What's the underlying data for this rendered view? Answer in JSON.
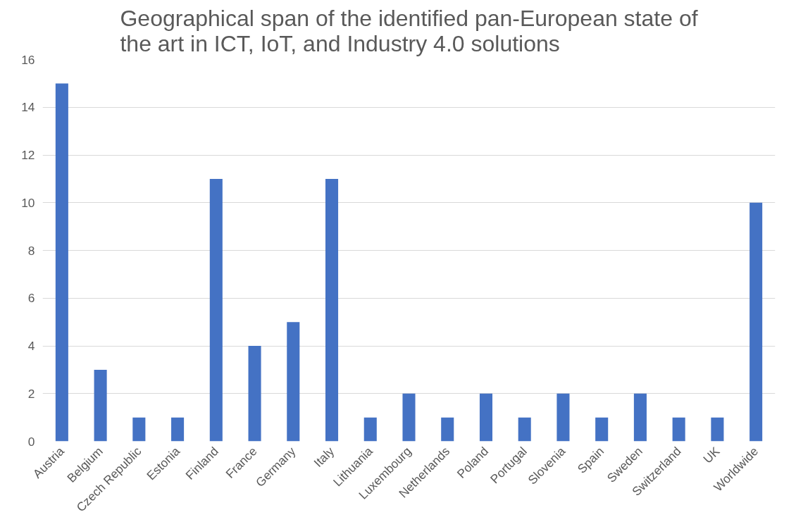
{
  "chart_data": {
    "type": "bar",
    "title": "Geographical span of the identified pan-European state of\nthe art in ICT, IoT, and Industry 4.0 solutions",
    "categories": [
      "Austria",
      "Belgium",
      "Czech Republic",
      "Estonia",
      "Finland",
      "France",
      "Germany",
      "Italy",
      "Lithuania",
      "Luxembourg",
      "Netherlands",
      "Poland",
      "Portugal",
      "Slovenia",
      "Spain",
      "Sweden",
      "Switzerland",
      "UK",
      "Worldwide"
    ],
    "values": [
      15,
      3,
      1,
      1,
      11,
      4,
      5,
      11,
      1,
      2,
      1,
      2,
      1,
      2,
      1,
      2,
      1,
      1,
      10
    ],
    "color": "#4472c4",
    "ylim": [
      0,
      16
    ],
    "yticks": [
      0,
      2,
      4,
      6,
      8,
      10,
      12,
      14,
      16
    ],
    "grid": "y"
  }
}
